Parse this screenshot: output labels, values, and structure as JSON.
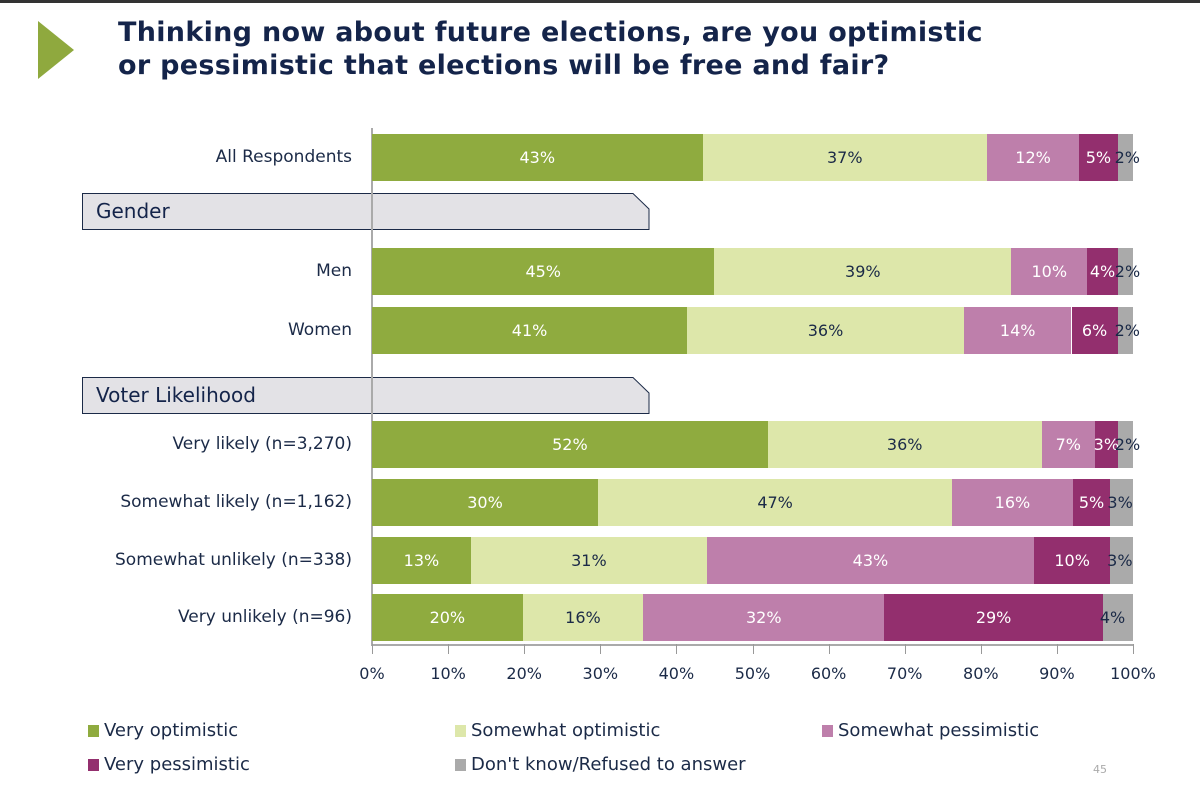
{
  "page_number": "45",
  "chart_data": {
    "type": "bar",
    "orientation": "horizontal-stacked-100",
    "title": [
      "Thinking now about future elections, are you optimistic",
      "or pessimistic that elections will be free and fair?"
    ],
    "xlim": [
      0,
      100
    ],
    "x_ticks": [
      "0%",
      "10%",
      "20%",
      "30%",
      "40%",
      "50%",
      "60%",
      "70%",
      "80%",
      "90%",
      "100%"
    ],
    "series": [
      {
        "name": "Very optimistic",
        "color": "#8fab3f",
        "label_color": "#ffffff"
      },
      {
        "name": "Somewhat optimistic",
        "color": "#dde7aa",
        "label_color": "#1b2a47"
      },
      {
        "name": "Somewhat pessimistic",
        "color": "#be7fab",
        "label_color": "#ffffff"
      },
      {
        "name": "Very pessimistic",
        "color": "#932f6e",
        "label_color": "#ffffff"
      },
      {
        "name": "Don't know/Refused to answer",
        "color": "#aaaaaa",
        "label_color": "#1b2a47"
      }
    ],
    "groups": [
      {
        "label": "Gender"
      },
      {
        "label": "Voter Likelihood"
      }
    ],
    "rows": [
      {
        "label": "All Respondents",
        "values": [
          43,
          37,
          12,
          5,
          2
        ]
      },
      {
        "label": "Men",
        "values": [
          45,
          39,
          10,
          4,
          2
        ]
      },
      {
        "label": "Women",
        "values": [
          41,
          36,
          14,
          6,
          2
        ]
      },
      {
        "label": "Very likely (n=3,270)",
        "values": [
          52,
          36,
          7,
          3,
          2
        ]
      },
      {
        "label": "Somewhat likely (n=1,162)",
        "values": [
          30,
          47,
          16,
          5,
          3
        ]
      },
      {
        "label": "Somewhat unlikely (n=338)",
        "values": [
          13,
          31,
          43,
          10,
          3
        ]
      },
      {
        "label": "Very unlikely (n=96)",
        "values": [
          20,
          16,
          32,
          29,
          4
        ]
      }
    ],
    "legend_position": "bottom"
  }
}
